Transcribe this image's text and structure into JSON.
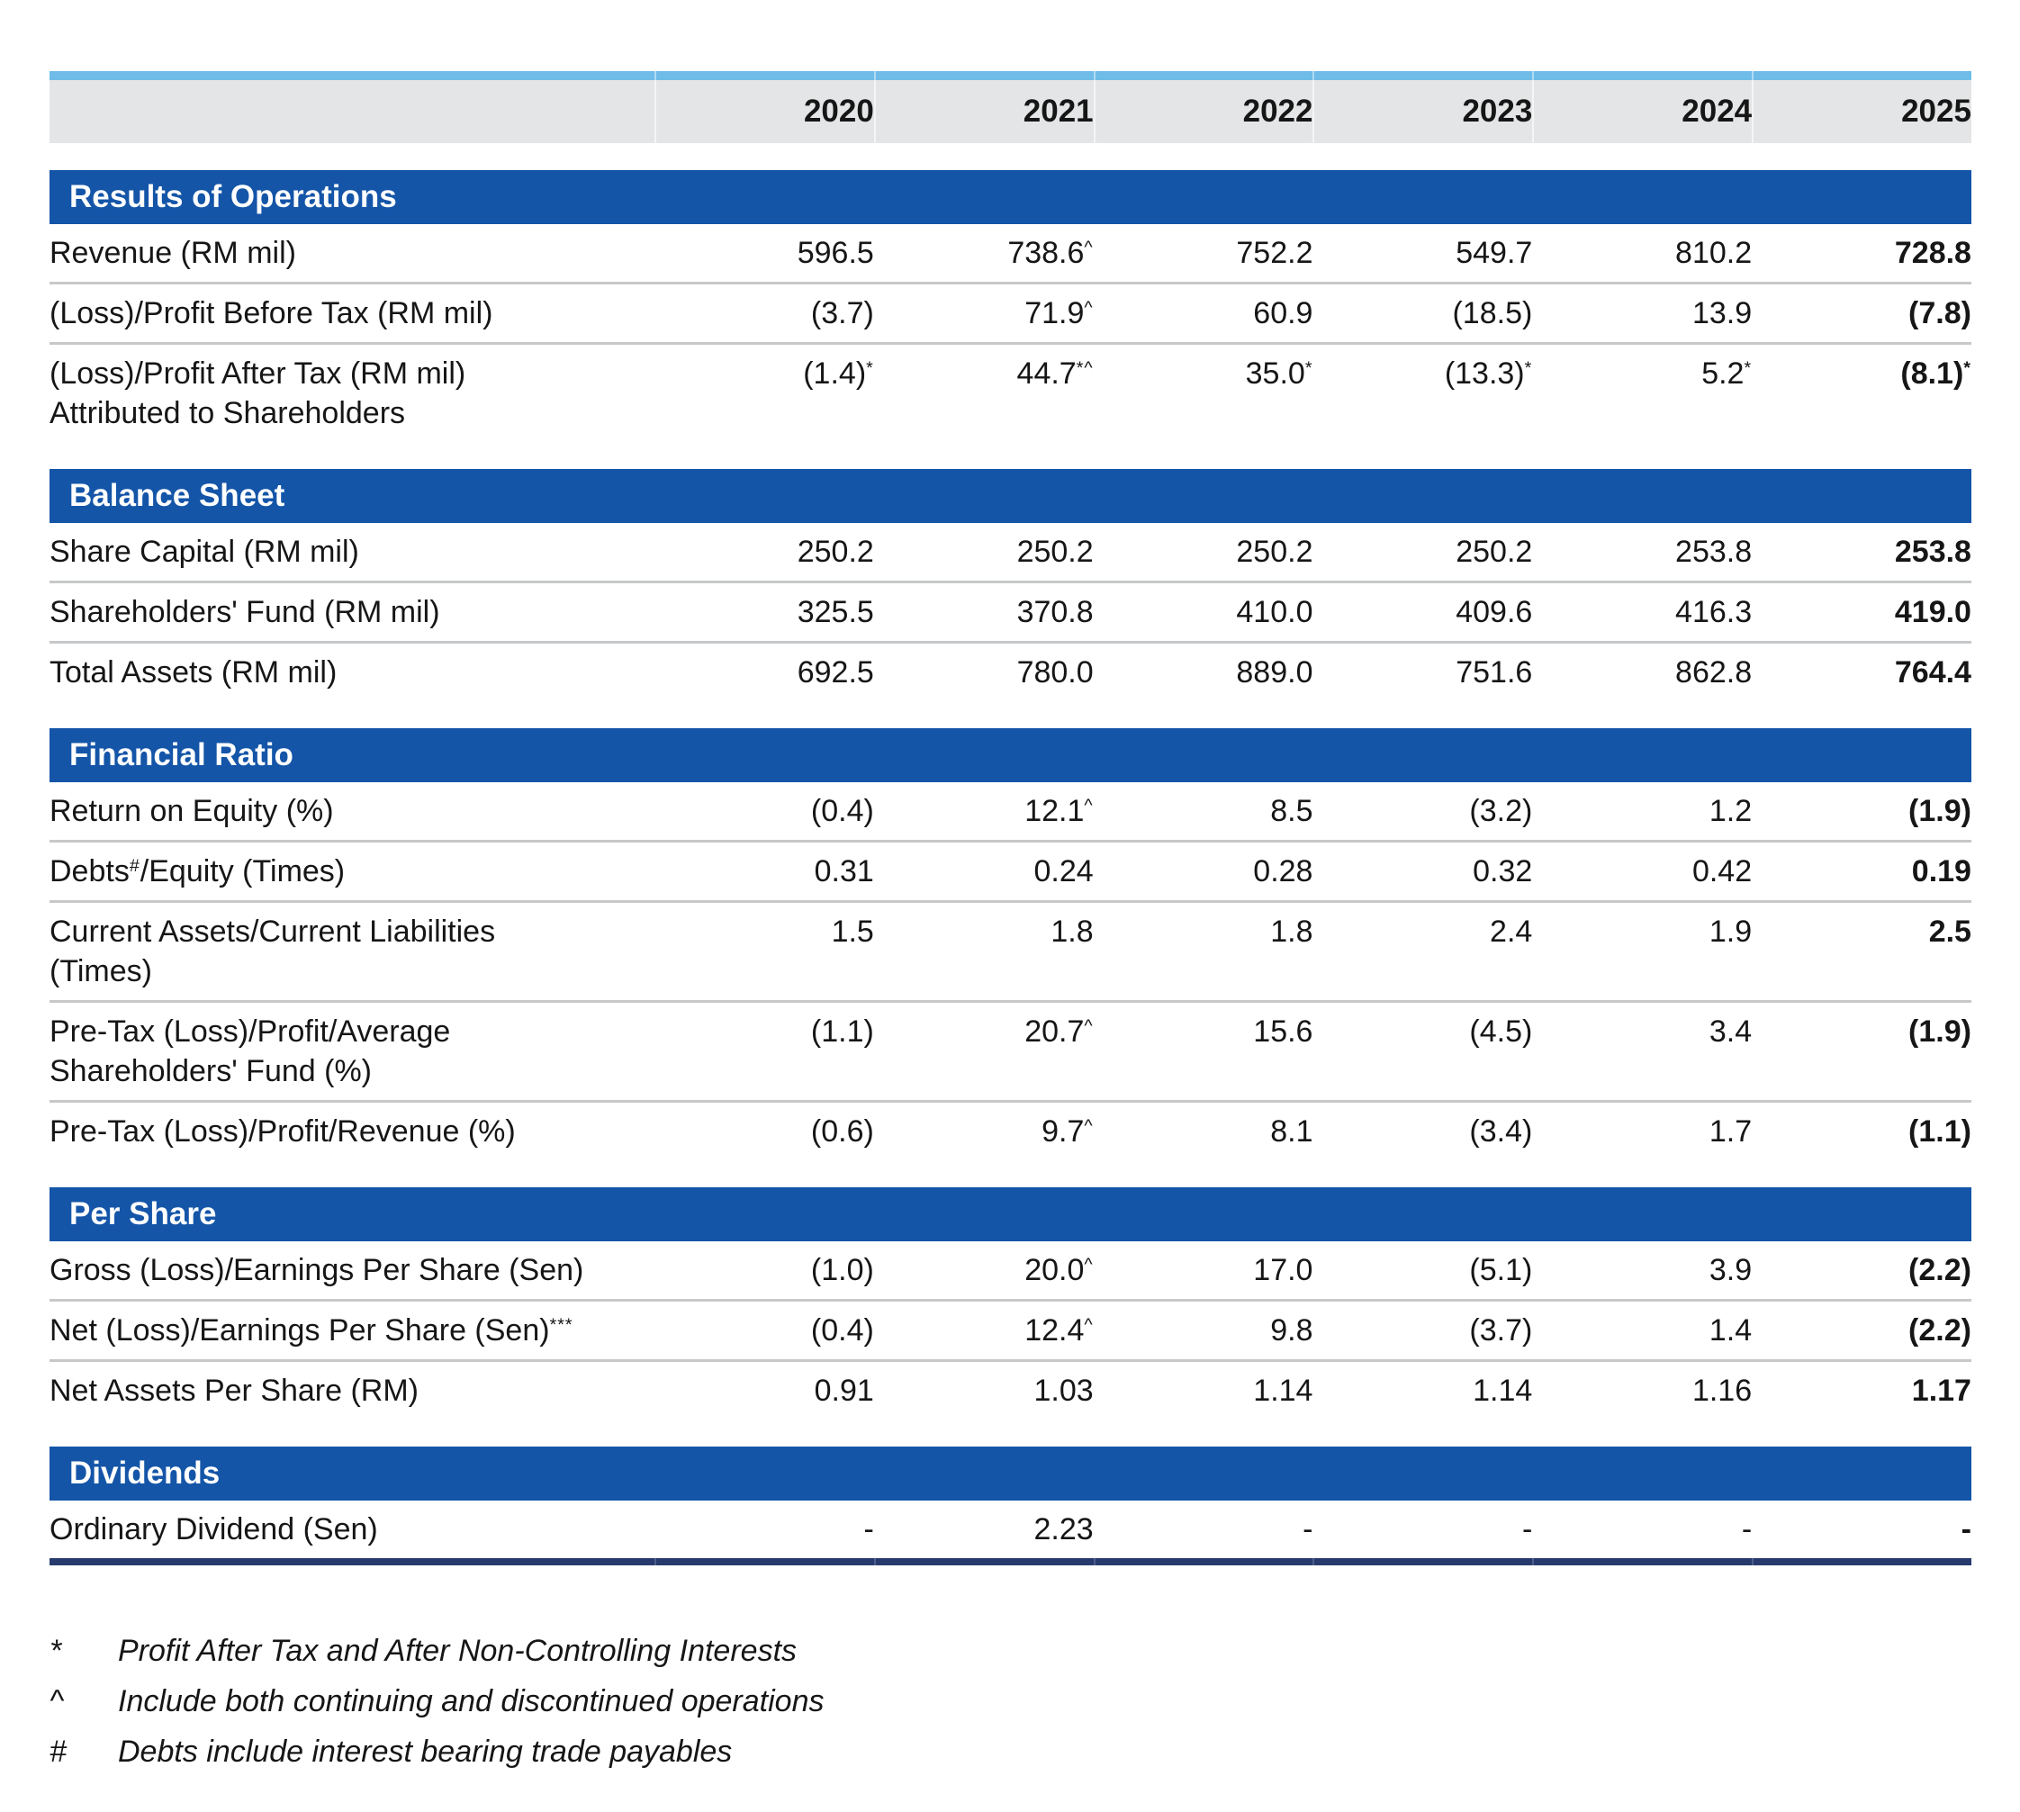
{
  "table": {
    "years": [
      "2020",
      "2021",
      "2022",
      "2023",
      "2024",
      "2025"
    ],
    "sections": [
      {
        "title": "Results of Operations",
        "rows": [
          {
            "label": [
              {
                "t": "Revenue (RM mil)"
              }
            ],
            "values": [
              {
                "v": "596.5"
              },
              {
                "v": "738.6",
                "s": "^"
              },
              {
                "v": "752.2"
              },
              {
                "v": "549.7"
              },
              {
                "v": "810.2"
              },
              {
                "v": "728.8"
              }
            ]
          },
          {
            "label": [
              {
                "t": "(Loss)/Profit Before Tax (RM mil)"
              }
            ],
            "values": [
              {
                "v": "(3.7)"
              },
              {
                "v": "71.9",
                "s": "^"
              },
              {
                "v": "60.9"
              },
              {
                "v": "(18.5)"
              },
              {
                "v": "13.9"
              },
              {
                "v": "(7.8)"
              }
            ]
          },
          {
            "label": [
              {
                "t": "(Loss)/Profit After Tax (RM mil)"
              }
            ],
            "label2": "Attributed to Shareholders",
            "values": [
              {
                "v": "(1.4)",
                "s": "*"
              },
              {
                "v": "44.7",
                "s": "*^"
              },
              {
                "v": "35.0",
                "s": "*"
              },
              {
                "v": "(13.3)",
                "s": "*"
              },
              {
                "v": "5.2",
                "s": "*"
              },
              {
                "v": "(8.1)",
                "s": "*"
              }
            ]
          }
        ]
      },
      {
        "title": "Balance Sheet",
        "rows": [
          {
            "label": [
              {
                "t": "Share Capital (RM mil)"
              }
            ],
            "values": [
              {
                "v": "250.2"
              },
              {
                "v": "250.2"
              },
              {
                "v": "250.2"
              },
              {
                "v": "250.2"
              },
              {
                "v": "253.8"
              },
              {
                "v": "253.8"
              }
            ]
          },
          {
            "label": [
              {
                "t": "Shareholders' Fund (RM mil)"
              }
            ],
            "values": [
              {
                "v": "325.5"
              },
              {
                "v": "370.8"
              },
              {
                "v": "410.0"
              },
              {
                "v": "409.6"
              },
              {
                "v": "416.3"
              },
              {
                "v": "419.0"
              }
            ]
          },
          {
            "label": [
              {
                "t": "Total Assets (RM mil)"
              }
            ],
            "values": [
              {
                "v": "692.5"
              },
              {
                "v": "780.0"
              },
              {
                "v": "889.0"
              },
              {
                "v": "751.6"
              },
              {
                "v": "862.8"
              },
              {
                "v": "764.4"
              }
            ]
          }
        ]
      },
      {
        "title": "Financial Ratio",
        "rows": [
          {
            "label": [
              {
                "t": "Return on Equity (%)"
              }
            ],
            "values": [
              {
                "v": "(0.4)"
              },
              {
                "v": "12.1",
                "s": "^"
              },
              {
                "v": "8.5"
              },
              {
                "v": "(3.2)"
              },
              {
                "v": "1.2"
              },
              {
                "v": "(1.9)"
              }
            ]
          },
          {
            "label": [
              {
                "t": "Debts"
              },
              {
                "s": "#"
              },
              {
                "t": "/Equity (Times)"
              }
            ],
            "values": [
              {
                "v": "0.31"
              },
              {
                "v": "0.24"
              },
              {
                "v": "0.28"
              },
              {
                "v": "0.32"
              },
              {
                "v": "0.42"
              },
              {
                "v": "0.19"
              }
            ]
          },
          {
            "label": [
              {
                "t": "Current Assets/Current Liabilities"
              }
            ],
            "label2": "(Times)",
            "values": [
              {
                "v": "1.5"
              },
              {
                "v": "1.8"
              },
              {
                "v": "1.8"
              },
              {
                "v": "2.4"
              },
              {
                "v": "1.9"
              },
              {
                "v": "2.5"
              }
            ]
          },
          {
            "label": [
              {
                "t": "Pre-Tax (Loss)/Profit/Average"
              }
            ],
            "label2": "Shareholders' Fund (%)",
            "values": [
              {
                "v": "(1.1)"
              },
              {
                "v": "20.7",
                "s": "^"
              },
              {
                "v": "15.6"
              },
              {
                "v": "(4.5)"
              },
              {
                "v": "3.4"
              },
              {
                "v": "(1.9)"
              }
            ]
          },
          {
            "label": [
              {
                "t": "Pre-Tax (Loss)/Profit/Revenue (%)"
              }
            ],
            "values": [
              {
                "v": "(0.6)"
              },
              {
                "v": "9.7",
                "s": "^"
              },
              {
                "v": "8.1"
              },
              {
                "v": "(3.4)"
              },
              {
                "v": "1.7"
              },
              {
                "v": "(1.1)"
              }
            ]
          }
        ]
      },
      {
        "title": "Per Share",
        "rows": [
          {
            "label": [
              {
                "t": "Gross (Loss)/Earnings Per Share (Sen)"
              }
            ],
            "values": [
              {
                "v": "(1.0)"
              },
              {
                "v": "20.0",
                "s": "^"
              },
              {
                "v": "17.0"
              },
              {
                "v": "(5.1)"
              },
              {
                "v": "3.9"
              },
              {
                "v": "(2.2)"
              }
            ]
          },
          {
            "label": [
              {
                "t": "Net (Loss)/Earnings Per Share (Sen)"
              },
              {
                "s": "***"
              }
            ],
            "values": [
              {
                "v": "(0.4)"
              },
              {
                "v": "12.4",
                "s": "^"
              },
              {
                "v": "9.8"
              },
              {
                "v": "(3.7)"
              },
              {
                "v": "1.4"
              },
              {
                "v": "(2.2)"
              }
            ]
          },
          {
            "label": [
              {
                "t": "Net Assets Per Share (RM)"
              }
            ],
            "values": [
              {
                "v": "0.91"
              },
              {
                "v": "1.03"
              },
              {
                "v": "1.14"
              },
              {
                "v": "1.14"
              },
              {
                "v": "1.16"
              },
              {
                "v": "1.17"
              }
            ]
          }
        ]
      },
      {
        "title": "Dividends",
        "rows": [
          {
            "label": [
              {
                "t": "Ordinary Dividend (Sen)"
              }
            ],
            "values": [
              {
                "v": "-"
              },
              {
                "v": "2.23"
              },
              {
                "v": "-"
              },
              {
                "v": "-"
              },
              {
                "v": "-"
              },
              {
                "v": "-"
              }
            ]
          }
        ]
      }
    ]
  },
  "footnotes": [
    {
      "symbol": "*",
      "text": "Profit After Tax and After Non-Controlling Interests"
    },
    {
      "symbol": "^",
      "text": "Include both continuing and discontinued operations"
    },
    {
      "symbol": "#",
      "text": "Debts include interest bearing trade payables"
    }
  ],
  "colors": {
    "accent_stripe": "#6fbce9",
    "header_background": "#e4e5e6",
    "section_band": "#1455a8",
    "row_divider": "#c6c8ca",
    "bottom_rule": "#273a6e",
    "text": "#161616"
  }
}
